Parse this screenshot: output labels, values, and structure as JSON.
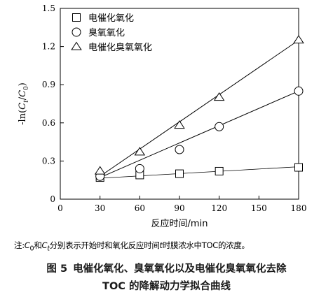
{
  "chart_data": {
    "type": "scatter",
    "xlabel": "反应时间/min",
    "ylabel": "-ln(Ct/C0)",
    "xlim": [
      0,
      180
    ],
    "ylim": [
      0,
      1.5
    ],
    "x_ticks": [
      "0",
      "30",
      "60",
      "90",
      "120",
      "150",
      "180"
    ],
    "y_ticks": [
      "0",
      "0.3",
      "0.6",
      "0.9",
      "1.2",
      "1.5"
    ],
    "legend_position": "top-left",
    "series": [
      {
        "name": "电催化氧化",
        "marker": "square",
        "x": [
          30,
          60,
          90,
          120,
          180
        ],
        "y": [
          0.17,
          0.19,
          0.2,
          0.22,
          0.25
        ],
        "fit": [
          [
            30,
            0.165
          ],
          [
            180,
            0.255
          ]
        ],
        "color": "#000000"
      },
      {
        "name": "臭氧氧化",
        "marker": "circle",
        "x": [
          30,
          60,
          90,
          120,
          180
        ],
        "y": [
          0.18,
          0.24,
          0.39,
          0.57,
          0.85
        ],
        "fit": [
          [
            30,
            0.17
          ],
          [
            180,
            0.85
          ]
        ],
        "color": "#000000"
      },
      {
        "name": "电催化臭氧氧化",
        "marker": "triangle",
        "x": [
          30,
          60,
          90,
          120,
          180
        ],
        "y": [
          0.22,
          0.37,
          0.58,
          0.8,
          1.25
        ],
        "fit": [
          [
            30,
            0.18
          ],
          [
            180,
            1.25
          ]
        ],
        "color": "#000000"
      }
    ]
  },
  "note": {
    "prefix": "注:",
    "c0": "C",
    "c0_sub": "0",
    "and": "和",
    "ct": "C",
    "ct_sub": "t",
    "text1": "分别表示开始时和氧化反应时间",
    "t": "t",
    "text2": "时膜浓水中TOC的浓度。"
  },
  "caption": {
    "figure_label": "图 5",
    "line1": "电催化氧化、臭氧氧化以及电催化臭氧氧化去除",
    "line2": "TOC 的降解动力学拟合曲线"
  }
}
